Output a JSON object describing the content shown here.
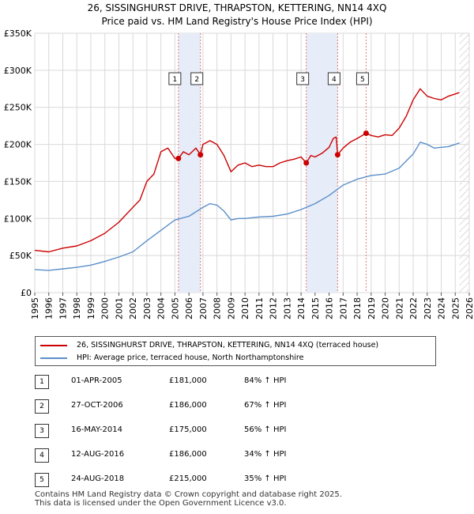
{
  "colors": {
    "property": "#cc0000",
    "hpi": "#5b8fc9",
    "band": "#e6ecf8",
    "vline": "#e07a7a",
    "grid": "#d9d9d9"
  },
  "chart_data": {
    "type": "line",
    "title": "26, SISSINGHURST DRIVE, THRAPSTON, KETTERING, NN14 4XQ",
    "subtitle": "Price paid vs. HM Land Registry's House Price Index (HPI)",
    "xlim": [
      1995,
      2026
    ],
    "ylim": [
      0,
      350000
    ],
    "y_ticks": [
      0,
      50000,
      100000,
      150000,
      200000,
      250000,
      300000,
      350000
    ],
    "y_tick_labels": [
      "£0",
      "£50K",
      "£100K",
      "£150K",
      "£200K",
      "£250K",
      "£300K",
      "£350K"
    ],
    "x_ticks": [
      1995,
      1996,
      1997,
      1998,
      1999,
      2000,
      2001,
      2002,
      2003,
      2004,
      2005,
      2006,
      2007,
      2008,
      2009,
      2010,
      2011,
      2012,
      2013,
      2014,
      2015,
      2016,
      2017,
      2018,
      2019,
      2020,
      2021,
      2022,
      2023,
      2024,
      2025,
      2026
    ],
    "x_tick_labels": [
      "1995",
      "1996",
      "1997",
      "1998",
      "1999",
      "2000",
      "2001",
      "2002",
      "2003",
      "2004",
      "2005",
      "2006",
      "2007",
      "2008",
      "2009",
      "2010",
      "2011",
      "2012",
      "2013",
      "2014",
      "2015",
      "2016",
      "2017",
      "2018",
      "2019",
      "2020",
      "2021",
      "2022",
      "2023",
      "2024",
      "2025",
      "2026"
    ],
    "grid": true,
    "shaded_ranges": [
      [
        2005.25,
        2006.82
      ],
      [
        2014.37,
        2016.61
      ]
    ],
    "future_hatch_from": 2025.3,
    "series": [
      {
        "name": "26, SISSINGHURST DRIVE, THRAPSTON, KETTERING, NN14 4XQ (terraced house)",
        "color": "#cc0000",
        "x": [
          1995.0,
          1996.0,
          1997.0,
          1998.0,
          1999.0,
          2000.0,
          2001.0,
          2002.0,
          2002.5,
          2003.0,
          2003.5,
          2004.0,
          2004.5,
          2005.0,
          2005.25,
          2005.6,
          2006.0,
          2006.5,
          2006.82,
          2007.0,
          2007.5,
          2008.0,
          2008.5,
          2009.0,
          2009.5,
          2010.0,
          2010.5,
          2011.0,
          2011.5,
          2012.0,
          2012.5,
          2013.0,
          2013.5,
          2014.0,
          2014.37,
          2014.7,
          2015.0,
          2015.5,
          2016.0,
          2016.3,
          2016.5,
          2016.61,
          2017.0,
          2017.5,
          2018.0,
          2018.64,
          2019.0,
          2019.5,
          2020.0,
          2020.5,
          2021.0,
          2021.5,
          2022.0,
          2022.5,
          2023.0,
          2023.5,
          2024.0,
          2024.5,
          2025.0,
          2025.3
        ],
        "values": [
          57000,
          55000,
          60000,
          63000,
          70000,
          80000,
          95000,
          115000,
          125000,
          150000,
          160000,
          190000,
          195000,
          181000,
          181000,
          190000,
          186000,
          195000,
          186000,
          200000,
          205000,
          200000,
          185000,
          163000,
          172000,
          175000,
          170000,
          172000,
          170000,
          170000,
          175000,
          178000,
          180000,
          183000,
          175000,
          185000,
          183000,
          188000,
          196000,
          208000,
          210000,
          186000,
          195000,
          203000,
          208000,
          215000,
          212000,
          210000,
          213000,
          212000,
          222000,
          238000,
          260000,
          275000,
          265000,
          262000,
          260000,
          265000,
          268000,
          270000
        ]
      },
      {
        "name": "HPI: Average price, terraced house, North Northamptonshire",
        "color": "#5b8fc9",
        "x": [
          1995.0,
          1996.0,
          1997.0,
          1998.0,
          1999.0,
          2000.0,
          2001.0,
          2002.0,
          2003.0,
          2004.0,
          2005.0,
          2006.0,
          2007.0,
          2007.5,
          2008.0,
          2008.5,
          2009.0,
          2009.5,
          2010.0,
          2011.0,
          2012.0,
          2013.0,
          2014.0,
          2015.0,
          2016.0,
          2017.0,
          2018.0,
          2019.0,
          2020.0,
          2021.0,
          2022.0,
          2022.5,
          2023.0,
          2023.5,
          2024.0,
          2024.5,
          2025.0,
          2025.3
        ],
        "values": [
          31000,
          30000,
          32000,
          34000,
          37000,
          42000,
          48000,
          55000,
          70000,
          84000,
          98000,
          103000,
          115000,
          120000,
          118000,
          110000,
          98000,
          100000,
          100000,
          102000,
          103000,
          106000,
          112000,
          120000,
          131000,
          145000,
          153000,
          158000,
          160000,
          168000,
          187000,
          203000,
          200000,
          195000,
          196000,
          197000,
          200000,
          202000
        ]
      }
    ],
    "sales": [
      {
        "label": "1",
        "x": 2005.25,
        "value": 181000
      },
      {
        "label": "2",
        "x": 2006.82,
        "value": 186000
      },
      {
        "label": "3",
        "x": 2014.37,
        "value": 175000
      },
      {
        "label": "4",
        "x": 2016.61,
        "value": 186000
      },
      {
        "label": "5",
        "x": 2018.64,
        "value": 215000
      }
    ]
  },
  "legend": {
    "property_label": "26, SISSINGHURST DRIVE, THRAPSTON, KETTERING, NN14 4XQ (terraced house)",
    "hpi_label": "HPI: Average price, terraced house, North Northamptonshire"
  },
  "sales_table": [
    {
      "num": "1",
      "date": "01-APR-2005",
      "price": "£181,000",
      "hpi": "84% ↑ HPI"
    },
    {
      "num": "2",
      "date": "27-OCT-2006",
      "price": "£186,000",
      "hpi": "67% ↑ HPI"
    },
    {
      "num": "3",
      "date": "16-MAY-2014",
      "price": "£175,000",
      "hpi": "56% ↑ HPI"
    },
    {
      "num": "4",
      "date": "12-AUG-2016",
      "price": "£186,000",
      "hpi": "34% ↑ HPI"
    },
    {
      "num": "5",
      "date": "24-AUG-2018",
      "price": "£215,000",
      "hpi": "35% ↑ HPI"
    }
  ],
  "footer": {
    "line1": "Contains HM Land Registry data © Crown copyright and database right 2025.",
    "line2": "This data is licensed under the Open Government Licence v3.0."
  }
}
